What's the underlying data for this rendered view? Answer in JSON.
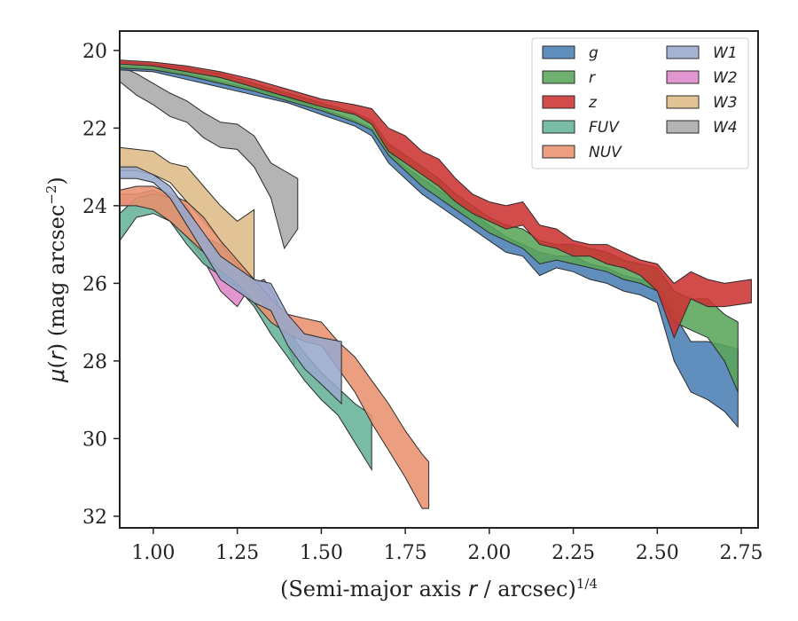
{
  "chart_data": {
    "type": "area",
    "xlabel": "(Semi-major axis r / arcsec)",
    "xlabel_italic_symbol": "r",
    "xlabel_exponent": "1/4",
    "ylabel": "μ(r) (mag arcsec",
    "ylabel_exponent": "−2",
    "ylabel_close": ")",
    "xlim": [
      0.9,
      2.8
    ],
    "ylim": [
      32.3,
      19.5
    ],
    "y_inverted": true,
    "xticks": [
      1.0,
      1.25,
      1.5,
      1.75,
      2.0,
      2.25,
      2.5,
      2.75
    ],
    "xtick_labels": [
      "1.00",
      "1.25",
      "1.50",
      "1.75",
      "2.00",
      "2.25",
      "2.50",
      "2.75"
    ],
    "yticks": [
      20,
      22,
      24,
      26,
      28,
      30,
      32
    ],
    "ytick_labels": [
      "20",
      "22",
      "24",
      "26",
      "28",
      "30",
      "32"
    ],
    "grid": false,
    "legend_placement": "top-right",
    "legend_columns": 2,
    "series": [
      {
        "name": "W4",
        "color": "#aaaaaa",
        "x": [
          0.9,
          0.95,
          1.0,
          1.05,
          1.1,
          1.15,
          1.2,
          1.25,
          1.3,
          1.35,
          1.39,
          1.43
        ],
        "y_low": [
          20.4,
          20.6,
          20.85,
          21.1,
          21.3,
          21.6,
          21.85,
          21.9,
          22.2,
          22.9,
          23.1,
          23.3
        ],
        "y_high": [
          20.8,
          21.15,
          21.4,
          21.7,
          21.85,
          22.25,
          22.5,
          22.55,
          23.0,
          23.8,
          25.1,
          24.6
        ]
      },
      {
        "name": "W3",
        "color": "#ddbb88",
        "x": [
          0.9,
          0.95,
          1.0,
          1.05,
          1.1,
          1.15,
          1.2,
          1.25,
          1.3
        ],
        "y_low": [
          22.5,
          22.55,
          22.6,
          22.9,
          23.0,
          23.5,
          24.0,
          24.4,
          24.1
        ],
        "y_high": [
          23.1,
          23.1,
          23.2,
          23.4,
          23.9,
          24.4,
          24.9,
          25.8,
          25.9
        ]
      },
      {
        "name": "W2",
        "color": "#dd88c8",
        "x": [
          0.9,
          0.95,
          1.0,
          1.05,
          1.1,
          1.15,
          1.2,
          1.25,
          1.28,
          1.3,
          1.33,
          1.36,
          1.39,
          1.42
        ],
        "y_low": [
          23.7,
          23.7,
          23.6,
          23.8,
          24.0,
          24.8,
          25.5,
          26.0,
          26.0,
          26.0,
          25.9,
          26.3,
          26.9,
          27.2
        ],
        "y_high": [
          24.0,
          24.0,
          24.1,
          24.3,
          24.8,
          25.4,
          26.2,
          26.6,
          26.2,
          26.5,
          26.4,
          26.9,
          27.3,
          28.1
        ]
      },
      {
        "name": "FUV",
        "color": "#66b399",
        "x": [
          0.9,
          0.95,
          1.0,
          1.05,
          1.1,
          1.15,
          1.2,
          1.25,
          1.3,
          1.35,
          1.4,
          1.45,
          1.5,
          1.55,
          1.6,
          1.65
        ],
        "y_low": [
          24.2,
          23.8,
          23.7,
          23.8,
          24.3,
          24.8,
          25.0,
          25.5,
          26.0,
          26.6,
          27.2,
          27.8,
          28.3,
          28.7,
          29.1,
          29.4
        ],
        "y_high": [
          24.9,
          24.3,
          24.2,
          24.4,
          25.0,
          25.5,
          25.8,
          26.1,
          26.6,
          27.3,
          27.9,
          28.5,
          29.0,
          29.4,
          30.1,
          30.8
        ]
      },
      {
        "name": "NUV",
        "color": "#e8926e",
        "x": [
          0.9,
          0.95,
          1.0,
          1.05,
          1.1,
          1.15,
          1.2,
          1.25,
          1.3,
          1.35,
          1.4,
          1.45,
          1.5,
          1.55,
          1.6,
          1.65,
          1.7,
          1.75,
          1.8,
          1.82
        ],
        "y_low": [
          23.6,
          23.5,
          23.5,
          23.7,
          23.9,
          24.3,
          24.9,
          25.4,
          25.9,
          26.4,
          26.8,
          26.9,
          27.0,
          27.5,
          27.9,
          28.5,
          29.1,
          29.8,
          30.4,
          30.6
        ],
        "y_high": [
          24.0,
          24.0,
          24.1,
          24.4,
          24.8,
          25.2,
          25.7,
          26.0,
          26.5,
          27.0,
          27.3,
          27.5,
          27.6,
          28.2,
          28.8,
          29.6,
          30.3,
          31.0,
          31.8,
          31.8
        ]
      },
      {
        "name": "W1",
        "color": "#98a8cc",
        "x": [
          0.9,
          0.95,
          1.0,
          1.05,
          1.1,
          1.15,
          1.2,
          1.25,
          1.3,
          1.35,
          1.4,
          1.45,
          1.5,
          1.56
        ],
        "y_low": [
          23.0,
          23.0,
          23.2,
          23.5,
          24.1,
          24.7,
          25.3,
          25.6,
          25.9,
          26.0,
          26.8,
          27.3,
          27.4,
          27.5
        ],
        "y_high": [
          23.3,
          23.3,
          23.4,
          23.8,
          24.5,
          25.2,
          25.9,
          26.2,
          26.5,
          26.7,
          27.6,
          28.2,
          28.6,
          29.1
        ]
      },
      {
        "name": "g",
        "color": "#4a7fb5",
        "x": [
          0.9,
          1.0,
          1.1,
          1.2,
          1.3,
          1.4,
          1.5,
          1.6,
          1.65,
          1.7,
          1.75,
          1.8,
          1.85,
          1.9,
          1.95,
          2.0,
          2.05,
          2.1,
          2.15,
          2.2,
          2.25,
          2.3,
          2.35,
          2.4,
          2.45,
          2.5,
          2.55,
          2.6,
          2.65,
          2.7,
          2.74
        ],
        "y_low": [
          20.4,
          20.45,
          20.6,
          20.8,
          21.0,
          21.2,
          21.5,
          21.8,
          22.0,
          22.6,
          23.0,
          23.3,
          23.6,
          23.9,
          24.2,
          24.5,
          24.8,
          25.0,
          25.2,
          25.3,
          25.3,
          25.5,
          25.6,
          25.8,
          25.9,
          26.0,
          26.8,
          27.5,
          27.5,
          27.6,
          27.7
        ],
        "y_high": [
          20.5,
          20.55,
          20.75,
          20.95,
          21.15,
          21.35,
          21.65,
          21.95,
          22.2,
          22.9,
          23.3,
          23.7,
          24.0,
          24.3,
          24.6,
          24.9,
          25.2,
          25.3,
          25.8,
          25.6,
          25.7,
          25.9,
          26.0,
          26.2,
          26.3,
          26.5,
          28.0,
          28.8,
          29.0,
          29.3,
          29.7
        ]
      },
      {
        "name": "r",
        "color": "#5aa55a",
        "x": [
          0.9,
          1.0,
          1.1,
          1.2,
          1.3,
          1.4,
          1.5,
          1.6,
          1.65,
          1.7,
          1.75,
          1.8,
          1.85,
          1.9,
          1.95,
          2.0,
          2.05,
          2.1,
          2.15,
          2.2,
          2.25,
          2.3,
          2.35,
          2.4,
          2.45,
          2.5,
          2.55,
          2.6,
          2.65,
          2.7,
          2.74
        ],
        "y_low": [
          20.3,
          20.35,
          20.45,
          20.6,
          20.85,
          21.1,
          21.35,
          21.6,
          21.8,
          22.4,
          22.7,
          23.0,
          23.3,
          23.7,
          24.0,
          24.3,
          24.5,
          24.6,
          24.9,
          25.0,
          25.0,
          25.1,
          25.2,
          25.4,
          25.5,
          25.6,
          26.2,
          26.4,
          26.4,
          26.8,
          27.0
        ],
        "y_high": [
          20.45,
          20.5,
          20.65,
          20.85,
          21.05,
          21.3,
          21.55,
          21.85,
          22.05,
          22.7,
          23.1,
          23.5,
          23.8,
          24.1,
          24.4,
          24.7,
          24.9,
          25.1,
          25.5,
          25.4,
          25.5,
          25.6,
          25.7,
          25.9,
          26.0,
          26.2,
          27.0,
          27.2,
          27.4,
          28.0,
          28.8
        ]
      },
      {
        "name": "z",
        "color": "#cc3333",
        "x": [
          0.9,
          1.0,
          1.1,
          1.2,
          1.3,
          1.4,
          1.5,
          1.6,
          1.65,
          1.7,
          1.75,
          1.8,
          1.85,
          1.9,
          1.95,
          2.0,
          2.05,
          2.1,
          2.15,
          2.2,
          2.25,
          2.3,
          2.35,
          2.4,
          2.45,
          2.5,
          2.55,
          2.6,
          2.65,
          2.7,
          2.78
        ],
        "y_low": [
          20.25,
          20.3,
          20.4,
          20.55,
          20.75,
          21.0,
          21.25,
          21.4,
          21.5,
          22.0,
          22.2,
          22.6,
          22.8,
          23.3,
          23.7,
          23.9,
          24.0,
          23.9,
          24.5,
          24.6,
          24.9,
          25.0,
          25.0,
          25.2,
          25.4,
          25.5,
          26.0,
          25.7,
          25.9,
          26.0,
          25.9
        ],
        "y_high": [
          20.35,
          20.4,
          20.55,
          20.7,
          20.95,
          21.2,
          21.45,
          21.65,
          21.9,
          22.6,
          22.9,
          23.2,
          23.5,
          23.9,
          24.2,
          24.4,
          24.6,
          24.5,
          25.0,
          25.1,
          25.3,
          25.3,
          25.5,
          25.6,
          25.8,
          26.2,
          27.4,
          26.4,
          26.6,
          26.6,
          26.5
        ]
      }
    ],
    "legend": [
      {
        "name": "g",
        "color": "#4a7fb5"
      },
      {
        "name": "r",
        "color": "#5aa55a"
      },
      {
        "name": "z",
        "color": "#cc3333"
      },
      {
        "name": "FUV",
        "color": "#66b399"
      },
      {
        "name": "NUV",
        "color": "#e8926e"
      },
      {
        "name": "W1",
        "color": "#98a8cc"
      },
      {
        "name": "W2",
        "color": "#dd88c8"
      },
      {
        "name": "W3",
        "color": "#ddbb88"
      },
      {
        "name": "W4",
        "color": "#aaaaaa"
      }
    ]
  }
}
